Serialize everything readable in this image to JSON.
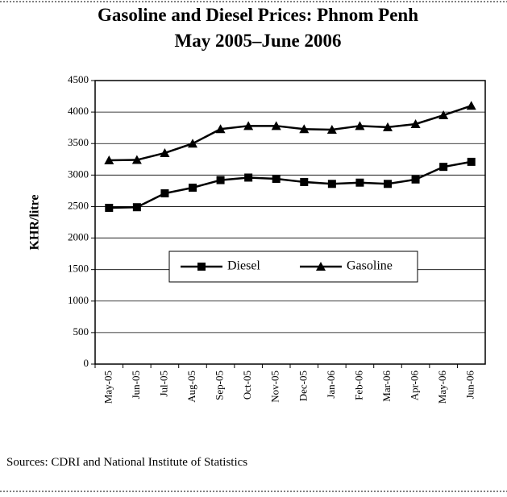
{
  "chart_data": {
    "type": "line",
    "title": "Gasoline and Diesel Prices: Phnom Penh",
    "subtitle": "May 2005–June 2006",
    "y_label": "KHR/litre",
    "source": "Sources: CDRI and National Institute of Statistics",
    "categories": [
      "May-05",
      "Jun-05",
      "Jul-05",
      "Aug-05",
      "Sep-05",
      "Oct-05",
      "Nov-05",
      "Dec-05",
      "Jan-06",
      "Feb-06",
      "Mar-06",
      "Apr-06",
      "May-06",
      "Jun-06"
    ],
    "series": [
      {
        "name": "Diesel",
        "color": "#000000",
        "marker": "square",
        "values": [
          2480,
          2490,
          2710,
          2800,
          2920,
          2960,
          2940,
          2890,
          2860,
          2880,
          2860,
          2930,
          3130,
          3210
        ]
      },
      {
        "name": "Gasoline",
        "color": "#000000",
        "marker": "triangle",
        "values": [
          3235,
          3240,
          3350,
          3500,
          3730,
          3780,
          3780,
          3730,
          3720,
          3780,
          3760,
          3810,
          3950,
          4100
        ]
      }
    ],
    "ylim": [
      0,
      4500
    ],
    "yticks": [
      0,
      500,
      1000,
      1500,
      2000,
      2500,
      3000,
      3500,
      4000,
      4500
    ],
    "grid": true,
    "legend": "center"
  }
}
